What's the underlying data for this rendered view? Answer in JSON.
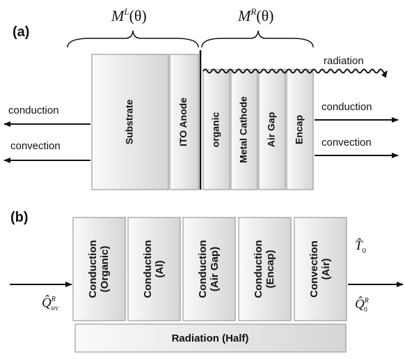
{
  "panel_a": {
    "label": "(a)",
    "left_group": {
      "base": "M",
      "sup": "L",
      "arg": "(θ)"
    },
    "right_group": {
      "base": "M",
      "sup": "R",
      "arg": "(θ)"
    },
    "layers": [
      "Substrate",
      "ITO Anode",
      "organic",
      "Metal Cathode",
      "Air Gap",
      "Encap"
    ],
    "left_arrows": [
      "conduction",
      "convection"
    ],
    "right_arrows": [
      "conduction",
      "convection"
    ],
    "radiation": "radiation"
  },
  "panel_b": {
    "label": "(b)",
    "blocks": [
      [
        "Conduction",
        "(Organic)"
      ],
      [
        "Conduction",
        "(Al)"
      ],
      [
        "Conduction",
        "(Air Gap)"
      ],
      [
        "Conduction",
        "(Encap)"
      ],
      [
        "Convection",
        "(Air)"
      ]
    ],
    "radiation_block": "Radiation (Half)",
    "source": {
      "base": "Q̂",
      "sub": "src",
      "sup": "R"
    },
    "temperature": {
      "base": "T̂",
      "sub": "0"
    },
    "output": {
      "base": "Q̂",
      "sub": "0",
      "sup": "R"
    }
  }
}
